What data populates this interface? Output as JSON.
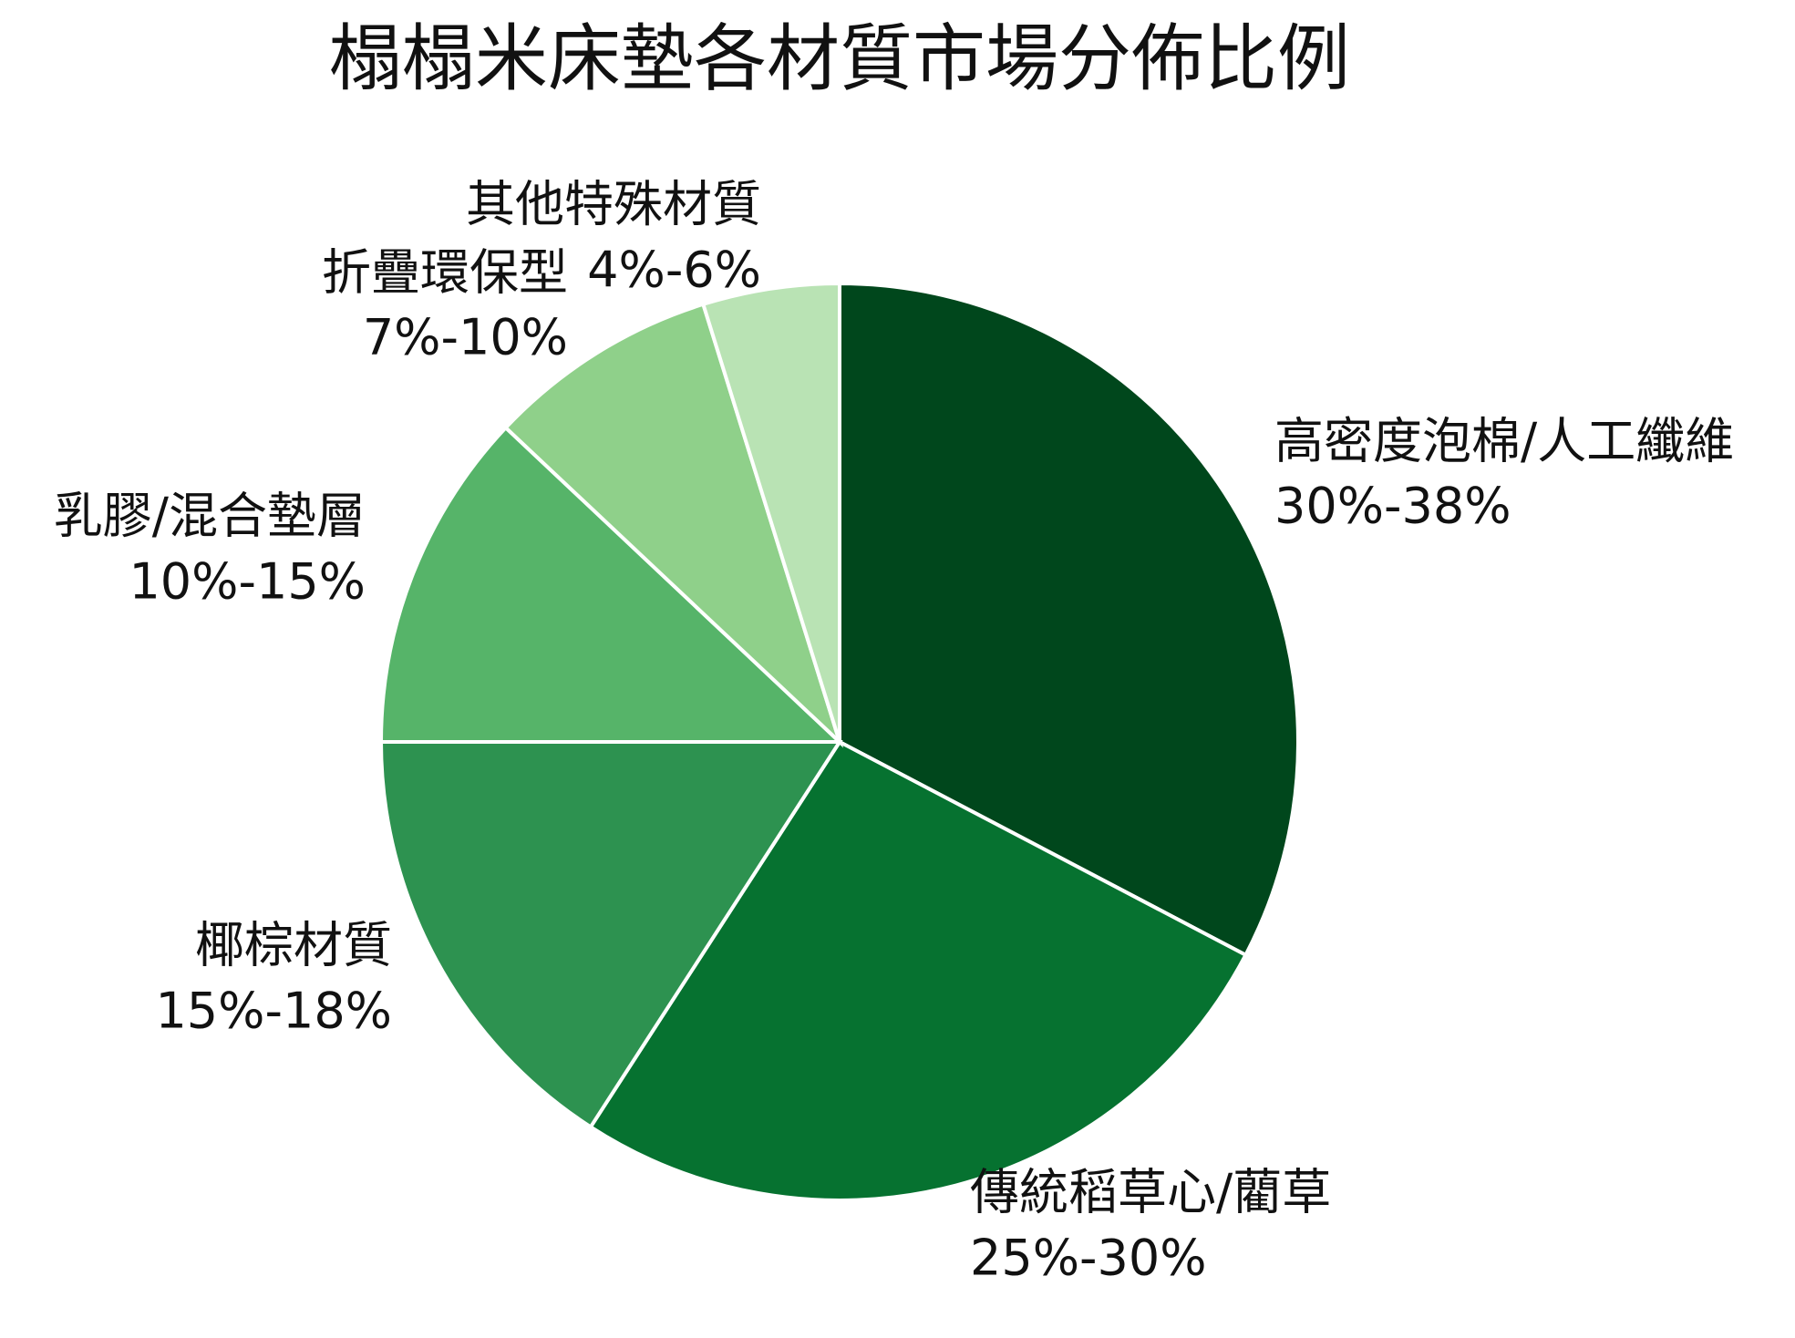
{
  "chart_data": {
    "type": "pie",
    "title": "榻榻米床墊各材質市場分佈比例",
    "categories": [
      "高密度泡棉/人工纖維",
      "傳統稻草心/藺草",
      "椰棕材質",
      "乳膠/混合墊層",
      "折疊環保型",
      "其他特殊材質"
    ],
    "values": [
      34,
      27.5,
      16.5,
      12.5,
      8.5,
      5
    ],
    "value_labels": [
      "30%-38%",
      "25%-30%",
      "15%-18%",
      "10%-15%",
      "7%-10%",
      "4%-6%"
    ],
    "colors": [
      "#00471c",
      "#067230",
      "#2d9250",
      "#56b469",
      "#8fd08a",
      "#b9e3b4"
    ]
  }
}
